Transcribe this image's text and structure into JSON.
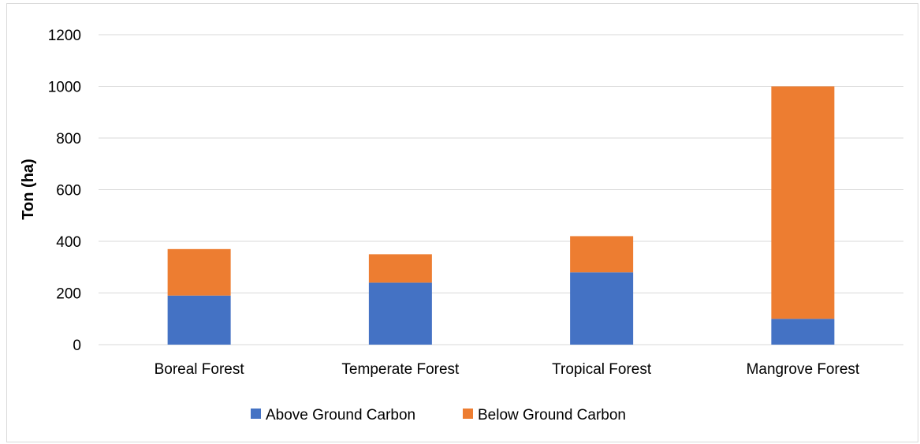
{
  "chart_data": {
    "type": "bar",
    "stacked": true,
    "title": "",
    "xlabel": "",
    "ylabel": "Ton (ha)",
    "ylim": [
      0,
      1200
    ],
    "yticks": [
      "0",
      "200",
      "400",
      "600",
      "800",
      "1000",
      "1200"
    ],
    "grid": true,
    "legend_position": "bottom",
    "categories": [
      "Boreal Forest",
      "Temperate Forest",
      "Tropical Forest",
      "Mangrove Forest"
    ],
    "series": [
      {
        "name": "Above Ground Carbon",
        "color": "#4472c4",
        "values": [
          190,
          240,
          280,
          100
        ]
      },
      {
        "name": "Below Ground Carbon",
        "color": "#ed7d31",
        "values": [
          180,
          110,
          140,
          900
        ]
      }
    ]
  }
}
